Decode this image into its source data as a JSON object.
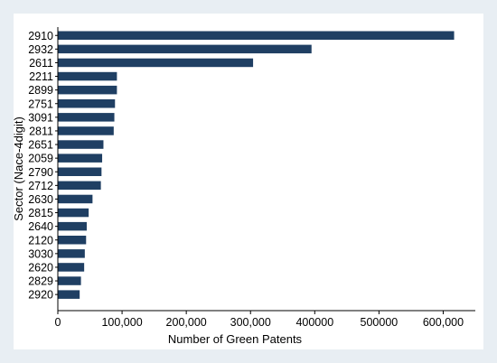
{
  "chart_data": {
    "type": "bar",
    "orientation": "horizontal",
    "title": "",
    "xlabel": "Number of Green Patents",
    "ylabel": "Sector (Nace-4digit)",
    "categories": [
      "2910",
      "2932",
      "2611",
      "2211",
      "2899",
      "2751",
      "3091",
      "2811",
      "2651",
      "2059",
      "2790",
      "2712",
      "2630",
      "2815",
      "2640",
      "2120",
      "3030",
      "2620",
      "2829",
      "2920"
    ],
    "values": [
      617000,
      395000,
      304000,
      92000,
      92000,
      89000,
      88000,
      87000,
      71000,
      69000,
      68000,
      67000,
      54000,
      48000,
      45000,
      44000,
      42000,
      41000,
      36000,
      34000
    ],
    "xlim": [
      0,
      650000
    ],
    "xticks": [
      0,
      100000,
      200000,
      300000,
      400000,
      500000,
      600000
    ],
    "xtick_labels": [
      "0",
      "100,000",
      "200,000",
      "300,000",
      "400000",
      "500000",
      "600,000"
    ],
    "grid": false,
    "colors": {
      "bar": "#1f3f63",
      "plot_bg": "#ffffff",
      "page_bg": "#e8eef3",
      "axis": "#000000"
    }
  }
}
